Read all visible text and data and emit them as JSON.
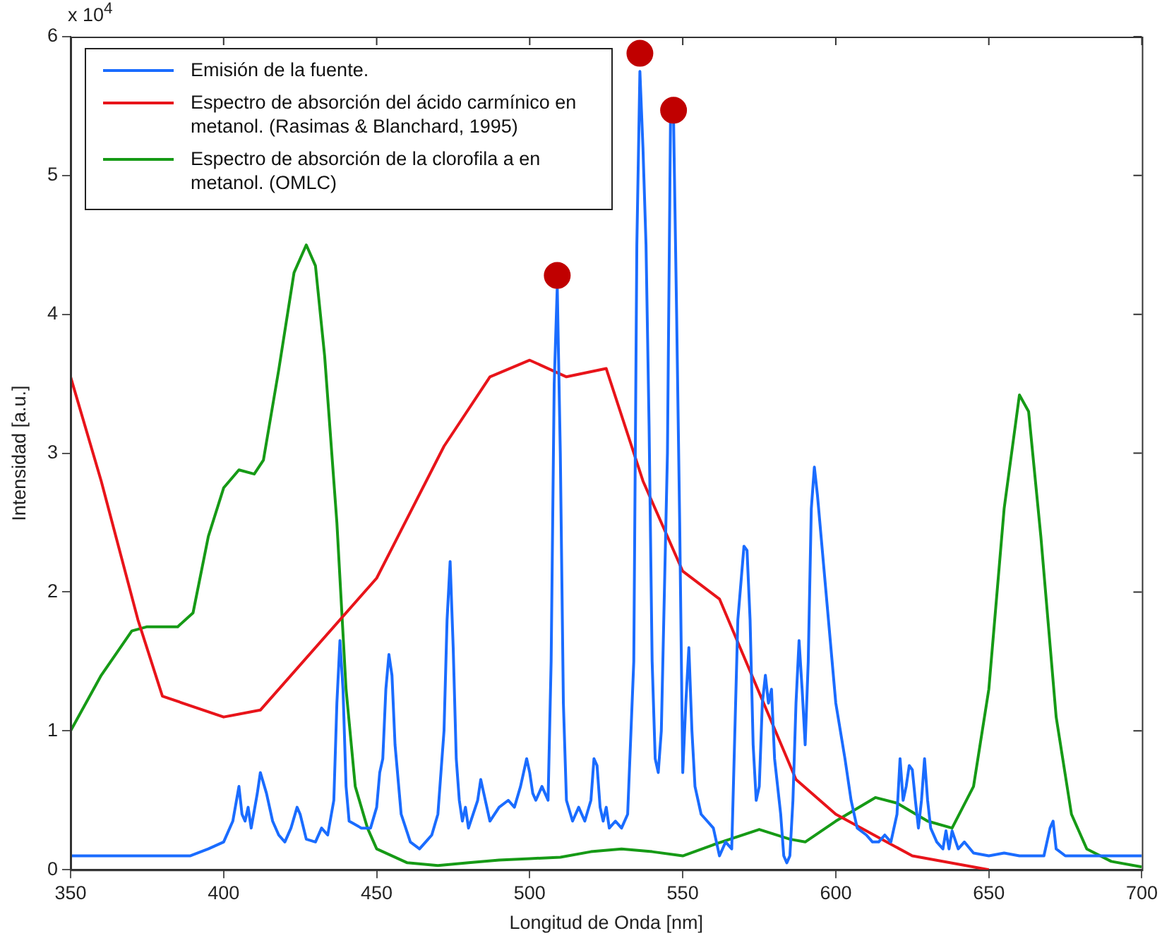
{
  "chart_data": {
    "type": "line",
    "xlabel": "Longitud de Onda [nm]",
    "ylabel": "Intensidad [a.u.]",
    "annotations": [
      "x 10$^{4}$"
    ],
    "xlim": [
      350,
      700
    ],
    "xticks": [
      350,
      400,
      450,
      500,
      550,
      600,
      650,
      700
    ],
    "ylim": [
      0,
      6
    ],
    "yticks": [
      0,
      1,
      2,
      3,
      4,
      5,
      6
    ],
    "grid": false,
    "legend": "top left",
    "marker": "none",
    "line_style": "solid",
    "series": [
      {
        "name": "Emisión de la fuente.",
        "color": "#1a6cff",
        "type": "line",
        "x": [
          350,
          389,
          395,
          400,
          403,
          405,
          406,
          407,
          408,
          409,
          411,
          412,
          414,
          416,
          418,
          420,
          422,
          424,
          425,
          427,
          430,
          432,
          434,
          436,
          437,
          438,
          439,
          440,
          441,
          445,
          448,
          450,
          451,
          452,
          453,
          454,
          455,
          456,
          458,
          461,
          464,
          466,
          468,
          470,
          472,
          473,
          474,
          475,
          476,
          477,
          478,
          479,
          480,
          483,
          484,
          485,
          487,
          490,
          493,
          495,
          497,
          499,
          500,
          501,
          502,
          504,
          505,
          506,
          507,
          508,
          509,
          510,
          511,
          512,
          514,
          516,
          518,
          520,
          521,
          522,
          523,
          524,
          525,
          526,
          528,
          530,
          532,
          534,
          535,
          536,
          537,
          538,
          539,
          540,
          541,
          542,
          543,
          545,
          546,
          547,
          548,
          549,
          550,
          551,
          552,
          553,
          554,
          556,
          558,
          560,
          562,
          564,
          566,
          568,
          570,
          571,
          572,
          573,
          574,
          575,
          576,
          577,
          578,
          579,
          580,
          582,
          583,
          584,
          585,
          586,
          587,
          588,
          589,
          590,
          591,
          592,
          593,
          594,
          596,
          598,
          600,
          603,
          605,
          607,
          610,
          612,
          614,
          616,
          618,
          620,
          621,
          622,
          623,
          624,
          625,
          626,
          627,
          628,
          629,
          630,
          631,
          633,
          635,
          636,
          637,
          638,
          640,
          642,
          645,
          650,
          655,
          660,
          665,
          668,
          670,
          671,
          672,
          675,
          700
        ],
        "values": [
          0.1,
          0.1,
          0.15,
          0.2,
          0.35,
          0.6,
          0.4,
          0.35,
          0.45,
          0.3,
          0.55,
          0.7,
          0.55,
          0.35,
          0.25,
          0.2,
          0.3,
          0.45,
          0.4,
          0.22,
          0.2,
          0.3,
          0.25,
          0.5,
          1.2,
          1.65,
          1.3,
          0.6,
          0.35,
          0.3,
          0.3,
          0.45,
          0.7,
          0.8,
          1.3,
          1.55,
          1.4,
          0.9,
          0.4,
          0.2,
          0.15,
          0.2,
          0.25,
          0.4,
          1.0,
          1.8,
          2.22,
          1.6,
          0.8,
          0.5,
          0.35,
          0.45,
          0.3,
          0.5,
          0.65,
          0.55,
          0.35,
          0.45,
          0.5,
          0.45,
          0.6,
          0.8,
          0.7,
          0.55,
          0.5,
          0.6,
          0.55,
          0.5,
          1.5,
          3.5,
          4.2,
          3.0,
          1.2,
          0.5,
          0.35,
          0.45,
          0.35,
          0.5,
          0.8,
          0.75,
          0.45,
          0.35,
          0.45,
          0.3,
          0.35,
          0.3,
          0.4,
          1.5,
          4.5,
          5.75,
          5.2,
          4.5,
          3.2,
          1.5,
          0.8,
          0.7,
          1.0,
          3.0,
          5.4,
          5.4,
          4.0,
          2.5,
          0.7,
          1.2,
          1.6,
          1.0,
          0.6,
          0.4,
          0.35,
          0.3,
          0.1,
          0.2,
          0.15,
          1.8,
          2.33,
          2.3,
          1.8,
          0.9,
          0.5,
          0.6,
          1.2,
          1.4,
          1.2,
          1.3,
          0.8,
          0.4,
          0.1,
          0.05,
          0.1,
          0.5,
          1.2,
          1.65,
          1.3,
          0.9,
          1.5,
          2.6,
          2.9,
          2.7,
          2.2,
          1.7,
          1.2,
          0.8,
          0.5,
          0.3,
          0.25,
          0.2,
          0.2,
          0.25,
          0.2,
          0.4,
          0.8,
          0.5,
          0.6,
          0.75,
          0.72,
          0.5,
          0.3,
          0.5,
          0.8,
          0.5,
          0.3,
          0.2,
          0.15,
          0.28,
          0.15,
          0.28,
          0.15,
          0.2,
          0.12,
          0.1,
          0.12,
          0.1,
          0.1,
          0.1,
          0.3,
          0.35,
          0.15,
          0.1,
          0.1
        ]
      },
      {
        "name": "Espectro de absorción del ácido carmínico en metanol. (Rasimas & Blanchard, 1995)",
        "color": "#e8141a",
        "type": "line",
        "x": [
          350,
          360,
          372,
          380,
          400,
          412,
          450,
          472,
          487,
          500,
          512,
          525,
          537,
          550,
          562,
          587,
          600,
          625,
          650
        ],
        "values": [
          3.55,
          2.8,
          1.8,
          1.25,
          1.1,
          1.15,
          2.1,
          3.05,
          3.55,
          3.67,
          3.55,
          3.61,
          2.8,
          2.15,
          1.95,
          0.65,
          0.4,
          0.1,
          0
        ]
      },
      {
        "name": "Espectro de absorción de la clorofila a en metanol. (OMLC)",
        "color": "#169a16",
        "type": "line",
        "x": [
          350,
          360,
          370,
          375,
          385,
          390,
          395,
          400,
          405,
          410,
          413,
          418,
          423,
          427,
          430,
          433,
          437,
          440,
          443,
          447,
          450,
          460,
          470,
          480,
          490,
          500,
          510,
          520,
          530,
          540,
          550,
          560,
          575,
          585,
          590,
          600,
          613,
          620,
          630,
          638,
          645,
          650,
          655,
          660,
          663,
          667,
          672,
          677,
          682,
          690,
          700
        ],
        "values": [
          1.0,
          1.4,
          1.72,
          1.75,
          1.75,
          1.85,
          2.4,
          2.75,
          2.88,
          2.85,
          2.95,
          3.6,
          4.3,
          4.5,
          4.35,
          3.7,
          2.5,
          1.3,
          0.6,
          0.3,
          0.15,
          0.05,
          0.03,
          0.05,
          0.07,
          0.08,
          0.09,
          0.13,
          0.15,
          0.13,
          0.1,
          0.18,
          0.29,
          0.22,
          0.2,
          0.35,
          0.52,
          0.48,
          0.35,
          0.3,
          0.6,
          1.3,
          2.6,
          3.42,
          3.3,
          2.4,
          1.1,
          0.4,
          0.15,
          0.06,
          0.02
        ]
      },
      {
        "color": "#c00000",
        "type": "scatter",
        "marker": "circle",
        "x": [
          509,
          536,
          547
        ],
        "values": [
          4.28,
          5.88,
          5.47
        ]
      }
    ]
  }
}
